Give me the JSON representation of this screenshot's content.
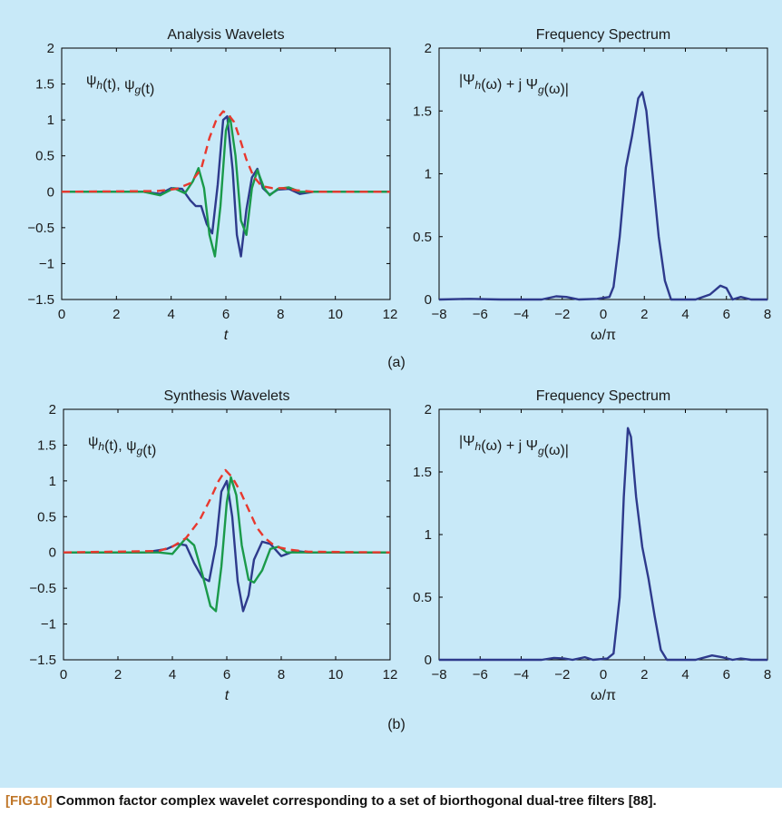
{
  "caption": {
    "tag": "[FIG10]",
    "text": "Common factor complex wavelet corresponding to a set of biorthogonal dual-tree filters [88]."
  },
  "colors": {
    "background": "#c8e9f8",
    "blue": "#2e3a8c",
    "green": "#1a9a4a",
    "red": "#e8382e",
    "caption_tag": "#c0772a"
  },
  "chart_data": [
    {
      "type": "line",
      "title": "Analysis Wavelets",
      "annotation": "ψh(t), ψg(t)",
      "xlabel": "t",
      "xlim": [
        0,
        12
      ],
      "ylim": [
        -1.5,
        2
      ],
      "xticks": [
        "0",
        "2",
        "4",
        "6",
        "8",
        "10",
        "12"
      ],
      "yticks": [
        "2",
        "1.5",
        "1",
        "0.5",
        "0",
        "−0.5",
        "−1",
        "−1.5"
      ],
      "series": [
        {
          "color": "blue",
          "style": "solid",
          "points": [
            [
              0,
              0
            ],
            [
              3,
              0
            ],
            [
              3.6,
              -0.03
            ],
            [
              4,
              0.05
            ],
            [
              4.4,
              0.04
            ],
            [
              4.7,
              -0.12
            ],
            [
              4.9,
              -0.2
            ],
            [
              5.1,
              -0.2
            ],
            [
              5.3,
              -0.45
            ],
            [
              5.5,
              -0.58
            ],
            [
              5.7,
              0.1
            ],
            [
              5.9,
              1.0
            ],
            [
              6.05,
              1.05
            ],
            [
              6.25,
              0.3
            ],
            [
              6.4,
              -0.6
            ],
            [
              6.55,
              -0.9
            ],
            [
              6.75,
              -0.25
            ],
            [
              6.95,
              0.2
            ],
            [
              7.15,
              0.32
            ],
            [
              7.35,
              0.05
            ],
            [
              7.6,
              -0.04
            ],
            [
              7.9,
              0.03
            ],
            [
              8.3,
              0.04
            ],
            [
              8.7,
              -0.03
            ],
            [
              9.2,
              0
            ],
            [
              12,
              0
            ]
          ]
        },
        {
          "color": "green",
          "style": "solid",
          "points": [
            [
              0,
              0
            ],
            [
              3,
              0
            ],
            [
              3.6,
              -0.05
            ],
            [
              4.1,
              0.05
            ],
            [
              4.5,
              -0.02
            ],
            [
              4.8,
              0.15
            ],
            [
              5.0,
              0.33
            ],
            [
              5.2,
              0.05
            ],
            [
              5.4,
              -0.6
            ],
            [
              5.6,
              -0.9
            ],
            [
              5.8,
              -0.2
            ],
            [
              6.0,
              0.85
            ],
            [
              6.15,
              1.05
            ],
            [
              6.35,
              0.5
            ],
            [
              6.55,
              -0.4
            ],
            [
              6.75,
              -0.6
            ],
            [
              6.95,
              0.05
            ],
            [
              7.15,
              0.3
            ],
            [
              7.4,
              0.05
            ],
            [
              7.6,
              -0.05
            ],
            [
              7.9,
              0.04
            ],
            [
              8.3,
              0.06
            ],
            [
              8.7,
              0
            ],
            [
              9.2,
              0
            ],
            [
              12,
              0
            ]
          ]
        },
        {
          "color": "red",
          "style": "dashed",
          "points": [
            [
              0,
              0
            ],
            [
              3.5,
              0.01
            ],
            [
              4.2,
              0.04
            ],
            [
              4.7,
              0.12
            ],
            [
              5.1,
              0.32
            ],
            [
              5.4,
              0.75
            ],
            [
              5.65,
              1.0
            ],
            [
              5.9,
              1.12
            ],
            [
              6.1,
              1.07
            ],
            [
              6.3,
              0.97
            ],
            [
              6.5,
              0.75
            ],
            [
              6.75,
              0.45
            ],
            [
              7.0,
              0.22
            ],
            [
              7.3,
              0.08
            ],
            [
              7.7,
              0.05
            ],
            [
              8.1,
              0.05
            ],
            [
              8.6,
              0.02
            ],
            [
              9.2,
              0
            ],
            [
              12,
              0
            ]
          ]
        }
      ]
    },
    {
      "type": "line",
      "title": "Frequency Spectrum",
      "annotation": "|Ψh(ω) + j Ψg(ω)|",
      "xlabel": "ω/π",
      "xlim": [
        -8,
        8
      ],
      "ylim": [
        0,
        2
      ],
      "xticks": [
        "−8",
        "−6",
        "−4",
        "−2",
        "0",
        "2",
        "4",
        "6",
        "8"
      ],
      "yticks": [
        "2",
        "1.5",
        "1",
        "0.5",
        "0"
      ],
      "series": [
        {
          "color": "blue",
          "style": "solid",
          "points": [
            [
              -8,
              0
            ],
            [
              -6.5,
              0.005
            ],
            [
              -5,
              0
            ],
            [
              -3,
              0
            ],
            [
              -2.3,
              0.025
            ],
            [
              -1.8,
              0.02
            ],
            [
              -1.2,
              0
            ],
            [
              -0.3,
              0.005
            ],
            [
              0.3,
              0.02
            ],
            [
              0.5,
              0.1
            ],
            [
              0.8,
              0.5
            ],
            [
              1.1,
              1.05
            ],
            [
              1.4,
              1.3
            ],
            [
              1.7,
              1.6
            ],
            [
              1.9,
              1.65
            ],
            [
              2.1,
              1.5
            ],
            [
              2.4,
              1.0
            ],
            [
              2.7,
              0.5
            ],
            [
              3.0,
              0.15
            ],
            [
              3.3,
              0
            ],
            [
              4.5,
              0
            ],
            [
              5.2,
              0.04
            ],
            [
              5.7,
              0.11
            ],
            [
              6.0,
              0.09
            ],
            [
              6.3,
              0
            ],
            [
              6.7,
              0.02
            ],
            [
              7.2,
              0
            ],
            [
              8,
              0
            ]
          ]
        }
      ]
    },
    {
      "type": "line",
      "title": "Synthesis Wavelets",
      "annotation": "ψh(t), ψg(t)",
      "xlabel": "t",
      "xlim": [
        0,
        12
      ],
      "ylim": [
        -1.5,
        2
      ],
      "xticks": [
        "0",
        "2",
        "4",
        "6",
        "8",
        "10",
        "12"
      ],
      "yticks": [
        "2",
        "1.5",
        "1",
        "0.5",
        "0",
        "−0.5",
        "−1",
        "−1.5"
      ],
      "series": [
        {
          "color": "blue",
          "style": "solid",
          "points": [
            [
              0,
              0
            ],
            [
              3,
              0
            ],
            [
              3.8,
              0.05
            ],
            [
              4.2,
              0.12
            ],
            [
              4.5,
              0.1
            ],
            [
              4.8,
              -0.15
            ],
            [
              5.1,
              -0.35
            ],
            [
              5.35,
              -0.4
            ],
            [
              5.6,
              0.1
            ],
            [
              5.8,
              0.85
            ],
            [
              6.0,
              1.0
            ],
            [
              6.2,
              0.5
            ],
            [
              6.4,
              -0.4
            ],
            [
              6.6,
              -0.82
            ],
            [
              6.8,
              -0.6
            ],
            [
              7.0,
              -0.1
            ],
            [
              7.3,
              0.15
            ],
            [
              7.6,
              0.12
            ],
            [
              8.0,
              -0.05
            ],
            [
              8.5,
              0.02
            ],
            [
              9.0,
              0
            ],
            [
              12,
              0
            ]
          ]
        },
        {
          "color": "green",
          "style": "solid",
          "points": [
            [
              0,
              0
            ],
            [
              3.5,
              0
            ],
            [
              4.0,
              -0.02
            ],
            [
              4.5,
              0.2
            ],
            [
              4.8,
              0.1
            ],
            [
              5.1,
              -0.3
            ],
            [
              5.4,
              -0.75
            ],
            [
              5.6,
              -0.82
            ],
            [
              5.8,
              -0.2
            ],
            [
              6.0,
              0.7
            ],
            [
              6.15,
              1.05
            ],
            [
              6.35,
              0.8
            ],
            [
              6.55,
              0.1
            ],
            [
              6.8,
              -0.38
            ],
            [
              7.0,
              -0.42
            ],
            [
              7.3,
              -0.25
            ],
            [
              7.6,
              0.05
            ],
            [
              7.9,
              0.08
            ],
            [
              8.2,
              0
            ],
            [
              9,
              0
            ],
            [
              12,
              0
            ]
          ]
        },
        {
          "color": "red",
          "style": "dashed",
          "points": [
            [
              0,
              0
            ],
            [
              3.5,
              0.02
            ],
            [
              4.0,
              0.08
            ],
            [
              4.5,
              0.2
            ],
            [
              5.0,
              0.45
            ],
            [
              5.4,
              0.75
            ],
            [
              5.7,
              1.0
            ],
            [
              5.95,
              1.15
            ],
            [
              6.2,
              1.05
            ],
            [
              6.5,
              0.85
            ],
            [
              6.8,
              0.6
            ],
            [
              7.1,
              0.35
            ],
            [
              7.4,
              0.2
            ],
            [
              7.8,
              0.08
            ],
            [
              8.3,
              0.04
            ],
            [
              9,
              0.01
            ],
            [
              12,
              0
            ]
          ]
        }
      ]
    },
    {
      "type": "line",
      "title": "Frequency Spectrum",
      "annotation": "|Ψh(ω) + j Ψg(ω)|",
      "xlabel": "ω/π",
      "xlim": [
        -8,
        8
      ],
      "ylim": [
        0,
        2
      ],
      "xticks": [
        "−8",
        "−6",
        "−4",
        "−2",
        "0",
        "2",
        "4",
        "6",
        "8"
      ],
      "yticks": [
        "2",
        "1.5",
        "1",
        "0.5",
        "0"
      ],
      "series": [
        {
          "color": "blue",
          "style": "solid",
          "points": [
            [
              -8,
              0
            ],
            [
              -6.5,
              0
            ],
            [
              -5,
              0
            ],
            [
              -3,
              0
            ],
            [
              -2.4,
              0.015
            ],
            [
              -1.9,
              0.01
            ],
            [
              -1.5,
              0
            ],
            [
              -0.9,
              0.02
            ],
            [
              -0.5,
              0
            ],
            [
              0.2,
              0.01
            ],
            [
              0.5,
              0.05
            ],
            [
              0.8,
              0.5
            ],
            [
              1.0,
              1.3
            ],
            [
              1.2,
              1.85
            ],
            [
              1.35,
              1.78
            ],
            [
              1.6,
              1.3
            ],
            [
              1.9,
              0.9
            ],
            [
              2.2,
              0.65
            ],
            [
              2.5,
              0.35
            ],
            [
              2.8,
              0.08
            ],
            [
              3.1,
              0
            ],
            [
              4.5,
              0
            ],
            [
              5.3,
              0.035
            ],
            [
              5.8,
              0.02
            ],
            [
              6.3,
              0
            ],
            [
              6.7,
              0.01
            ],
            [
              7.2,
              0
            ],
            [
              8,
              0
            ]
          ]
        }
      ]
    }
  ],
  "sub_labels": [
    "(a)",
    "(b)"
  ]
}
